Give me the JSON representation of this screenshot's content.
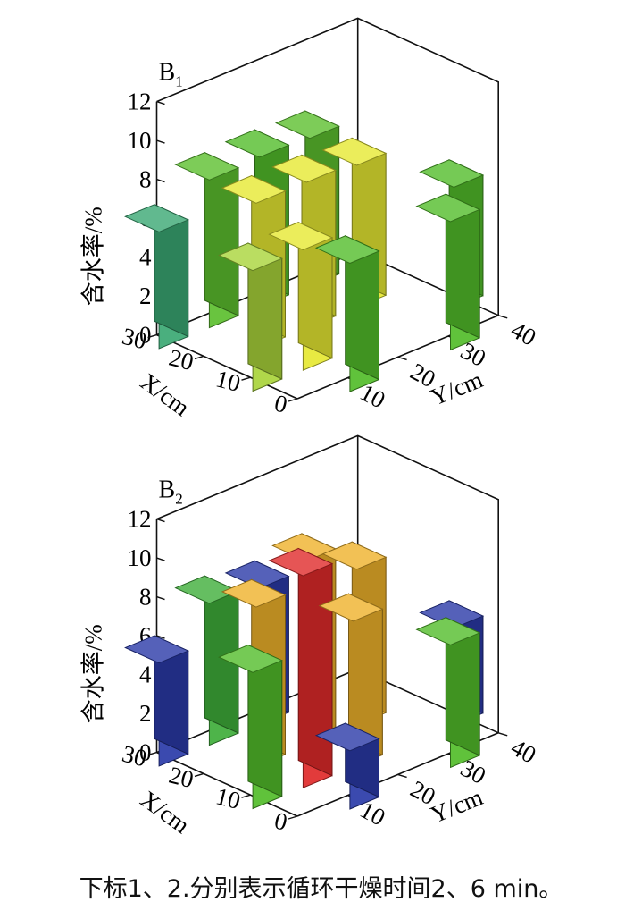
{
  "caption": "下标1、2.分别表示循环干燥时间2、6 min。",
  "chart_data": [
    {
      "type": "bar3d",
      "title": "B",
      "title_subscript": "1",
      "zlabel": "含水率/%",
      "xlabel": "X/cm",
      "ylabel": "Y/cm",
      "zlim": [
        0,
        12
      ],
      "z_ticks": [
        "0",
        "2",
        "4",
        "6",
        "8",
        "10",
        "12"
      ],
      "x_ticks": [
        "0",
        "10",
        "20",
        "30"
      ],
      "y_ticks": [
        "10",
        "20",
        "30",
        "40"
      ],
      "bars": [
        {
          "x": 30,
          "y": 0,
          "z": 6.0,
          "color": "#3aa873"
        },
        {
          "x": 30,
          "y": 10,
          "z": 7.6,
          "color": "#5cbf2e"
        },
        {
          "x": 30,
          "y": 20,
          "z": 7.7,
          "color": "#52bd2a"
        },
        {
          "x": 30,
          "y": 30,
          "z": 7.6,
          "color": "#5cbf2e"
        },
        {
          "x": 20,
          "y": 10,
          "z": 7.5,
          "color": "#e6e832"
        },
        {
          "x": 20,
          "y": 20,
          "z": 7.5,
          "color": "#e6e832"
        },
        {
          "x": 20,
          "y": 30,
          "z": 7.3,
          "color": "#e6e832"
        },
        {
          "x": 10,
          "y": 0,
          "z": 6.2,
          "color": "#a9d43a"
        },
        {
          "x": 10,
          "y": 10,
          "z": 6.2,
          "color": "#e6e832"
        },
        {
          "x": 10,
          "y": 40,
          "z": 6.2,
          "color": "#52bd2a"
        },
        {
          "x": 0,
          "y": 10,
          "z": 6.6,
          "color": "#52bd2a"
        },
        {
          "x": 0,
          "y": 30,
          "z": 6.6,
          "color": "#52bd2a"
        }
      ]
    },
    {
      "type": "bar3d",
      "title": "B",
      "title_subscript": "2",
      "zlabel": "含水率/%",
      "xlabel": "X/cm",
      "ylabel": "Y/cm",
      "zlim": [
        0,
        12
      ],
      "z_ticks": [
        "0",
        "2",
        "4",
        "6",
        "8",
        "10",
        "12"
      ],
      "x_ticks": [
        "0",
        "10",
        "20",
        "30"
      ],
      "y_ticks": [
        "10",
        "20",
        "30",
        "40"
      ],
      "bars": [
        {
          "x": 30,
          "y": 0,
          "z": 5.3,
          "color": "#2a3aa8"
        },
        {
          "x": 30,
          "y": 10,
          "z": 7.3,
          "color": "#3fae3a"
        },
        {
          "x": 30,
          "y": 20,
          "z": 7.0,
          "color": "#2a3aa8"
        },
        {
          "x": 20,
          "y": 10,
          "z": 8.2,
          "color": "#efb22a"
        },
        {
          "x": 20,
          "y": 20,
          "z": 9.5,
          "color": "#efb22a"
        },
        {
          "x": 20,
          "y": 30,
          "z": 8.0,
          "color": "#efb22a"
        },
        {
          "x": 10,
          "y": 0,
          "z": 7.0,
          "color": "#52bd2a"
        },
        {
          "x": 10,
          "y": 10,
          "z": 10.9,
          "color": "#e02a2a"
        },
        {
          "x": 10,
          "y": 20,
          "z": 7.5,
          "color": "#efb22a"
        },
        {
          "x": 10,
          "y": 40,
          "z": 5.0,
          "color": "#2a3aa8"
        },
        {
          "x": 0,
          "y": 10,
          "z": 3.0,
          "color": "#2a3aa8"
        },
        {
          "x": 0,
          "y": 30,
          "z": 6.3,
          "color": "#52bd2a"
        }
      ]
    }
  ]
}
